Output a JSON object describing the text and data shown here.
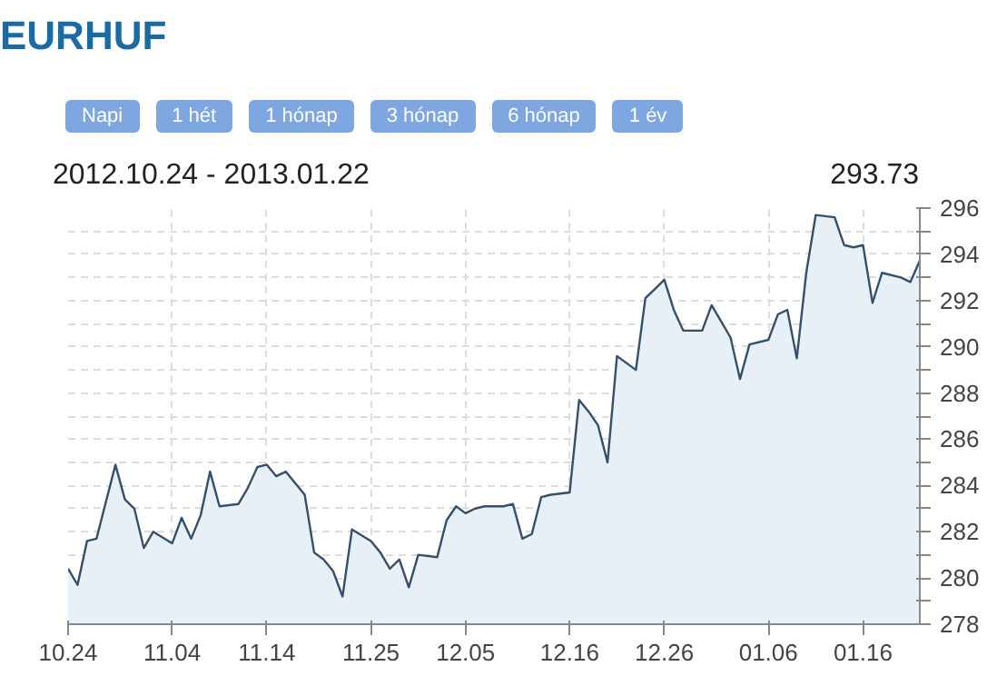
{
  "chart_data": {
    "type": "area",
    "title": "EURHUF",
    "subtitle": "2012.10.24 - 2013.01.22",
    "annotations": [
      "Napi",
      "1 hét",
      "1 hónap",
      "3 hónap",
      "6 hónap",
      "1 év",
      "293.73"
    ],
    "x": [
      "2012-10-24",
      "2012-10-25",
      "2012-10-26",
      "2012-10-27",
      "2012-10-29",
      "2012-10-30",
      "2012-10-31",
      "2012-11-01",
      "2012-11-02",
      "2012-11-04",
      "2012-11-05",
      "2012-11-06",
      "2012-11-07",
      "2012-11-08",
      "2012-11-09",
      "2012-11-11",
      "2012-11-12",
      "2012-11-13",
      "2012-11-14",
      "2012-11-15",
      "2012-11-16",
      "2012-11-18",
      "2012-11-19",
      "2012-11-20",
      "2012-11-21",
      "2012-11-22",
      "2012-11-23",
      "2012-11-25",
      "2012-11-26",
      "2012-11-27",
      "2012-11-28",
      "2012-11-29",
      "2012-11-30",
      "2012-12-02",
      "2012-12-03",
      "2012-12-04",
      "2012-12-05",
      "2012-12-06",
      "2012-12-07",
      "2012-12-09",
      "2012-12-10",
      "2012-12-11",
      "2012-12-12",
      "2012-12-13",
      "2012-12-14",
      "2012-12-16",
      "2012-12-17",
      "2012-12-18",
      "2012-12-19",
      "2012-12-20",
      "2012-12-21",
      "2012-12-23",
      "2012-12-24",
      "2012-12-25",
      "2012-12-26",
      "2012-12-27",
      "2012-12-28",
      "2012-12-30",
      "2012-12-31",
      "2013-01-01",
      "2013-01-02",
      "2013-01-03",
      "2013-01-04",
      "2013-01-06",
      "2013-01-07",
      "2013-01-08",
      "2013-01-09",
      "2013-01-10",
      "2013-01-11",
      "2013-01-13",
      "2013-01-14",
      "2013-01-15",
      "2013-01-16",
      "2013-01-17",
      "2013-01-18",
      "2013-01-20",
      "2013-01-21",
      "2013-01-22"
    ],
    "series": [
      {
        "color": "#34506a",
        "values": [
          280.4,
          279.7,
          281.6,
          281.7,
          284.9,
          283.4,
          283.0,
          281.3,
          282.0,
          281.5,
          282.6,
          281.7,
          282.7,
          284.6,
          283.1,
          283.2,
          283.9,
          284.8,
          284.9,
          284.4,
          284.6,
          283.6,
          281.1,
          280.8,
          280.3,
          279.2,
          282.1,
          281.6,
          281.1,
          280.4,
          280.8,
          279.6,
          281.0,
          280.9,
          282.5,
          283.1,
          282.8,
          283.0,
          283.1,
          283.1,
          283.2,
          281.7,
          281.9,
          283.5,
          283.6,
          283.7,
          287.7,
          287.2,
          286.6,
          285.0,
          289.6,
          289.0,
          292.1,
          292.5,
          292.9,
          291.6,
          290.7,
          290.7,
          291.8,
          291.1,
          290.4,
          288.6,
          290.1,
          290.3,
          291.4,
          291.6,
          289.5,
          293.2,
          295.7,
          295.6,
          294.4,
          294.3,
          294.4,
          291.9,
          293.2,
          293.0,
          292.8,
          293.73
        ]
      }
    ],
    "xlim": [
      "2012-10-24",
      "2013-01-22"
    ],
    "xticks": [
      {
        "value": "2012-10-24",
        "label": "10.24"
      },
      {
        "value": "2012-11-04",
        "label": "11.04"
      },
      {
        "value": "2012-11-14",
        "label": "11.14"
      },
      {
        "value": "2012-11-25",
        "label": "11.25"
      },
      {
        "value": "2012-12-05",
        "label": "12.05"
      },
      {
        "value": "2012-12-16",
        "label": "12.16"
      },
      {
        "value": "2012-12-26",
        "label": "12.26"
      },
      {
        "value": "2013-01-06",
        "label": "01.06"
      },
      {
        "value": "2013-01-16",
        "label": "01.16"
      }
    ],
    "ylim": [
      278,
      296
    ],
    "yticks": [
      278,
      {
        "value": 279,
        "label": null
      },
      280,
      {
        "value": 281,
        "label": null
      },
      282,
      {
        "value": 283,
        "label": null
      },
      284,
      {
        "value": 285,
        "label": null
      },
      286,
      {
        "value": 287,
        "label": null
      },
      288,
      {
        "value": 289,
        "label": null
      },
      290,
      {
        "value": 291,
        "label": null
      },
      292,
      {
        "value": 293,
        "label": null
      },
      294,
      {
        "value": 295,
        "label": null
      },
      296
    ],
    "grid": true
  }
}
